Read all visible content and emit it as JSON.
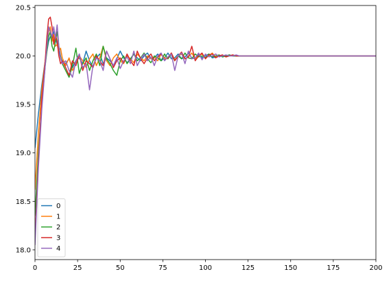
{
  "chart_data": {
    "type": "line",
    "title": "",
    "xlabel": "",
    "ylabel": "",
    "xlim": [
      0,
      200
    ],
    "ylim": [
      17.9,
      20.52
    ],
    "xticks": [
      0,
      25,
      50,
      75,
      100,
      125,
      150,
      175,
      200
    ],
    "yticks": [
      18.0,
      18.5,
      19.0,
      19.5,
      20.0,
      20.5
    ],
    "grid": false,
    "legend_position": "lower-left",
    "series": [
      {
        "name": "0",
        "color": "#1f77b4",
        "x": [
          0,
          2,
          4,
          6,
          7,
          8,
          9,
          10,
          11,
          12,
          13,
          14,
          15,
          16,
          18,
          20,
          22,
          24,
          26,
          28,
          30,
          32,
          34,
          36,
          38,
          40,
          42,
          44,
          46,
          48,
          50,
          52,
          54,
          56,
          58,
          60,
          62,
          64,
          66,
          68,
          70,
          72,
          74,
          76,
          78,
          80,
          82,
          84,
          86,
          88,
          90,
          92,
          94,
          96,
          98,
          100,
          102,
          104,
          106,
          108,
          110,
          112,
          114,
          116,
          118,
          120,
          122,
          125,
          130,
          135,
          140,
          150,
          160,
          175,
          200
        ],
        "y": [
          19.05,
          19.4,
          19.7,
          19.95,
          20.05,
          20.15,
          20.2,
          20.18,
          20.25,
          20.2,
          20.12,
          20.05,
          19.98,
          19.95,
          19.92,
          19.97,
          19.88,
          19.95,
          19.98,
          19.92,
          20.05,
          19.95,
          19.88,
          19.98,
          20.02,
          19.92,
          19.98,
          19.95,
          19.9,
          19.97,
          20.05,
          19.98,
          19.93,
          19.97,
          20.02,
          19.98,
          19.95,
          20.0,
          20.03,
          19.97,
          19.98,
          20.02,
          19.95,
          19.98,
          20.03,
          19.97,
          19.98,
          20.02,
          19.97,
          19.99,
          20.03,
          19.98,
          19.97,
          20.02,
          19.98,
          20.0,
          20.02,
          19.98,
          19.99,
          20.01,
          19.99,
          20.0,
          20.01,
          20.0,
          20.0,
          20.0,
          20.0,
          20.0,
          20.0,
          20.0,
          20.0,
          20.0,
          20.0,
          20.0,
          20.0
        ]
      },
      {
        "name": "1",
        "color": "#ff7f0e",
        "x": [
          0,
          2,
          4,
          6,
          7,
          8,
          9,
          10,
          11,
          12,
          13,
          14,
          15,
          16,
          18,
          20,
          22,
          24,
          26,
          28,
          30,
          32,
          34,
          36,
          38,
          40,
          42,
          44,
          46,
          48,
          50,
          52,
          54,
          56,
          58,
          60,
          62,
          64,
          66,
          68,
          70,
          72,
          74,
          76,
          78,
          80,
          82,
          84,
          86,
          88,
          90,
          92,
          94,
          96,
          98,
          100,
          102,
          104,
          106,
          108,
          110,
          112,
          114,
          116,
          118,
          120,
          122,
          125,
          130,
          135,
          140,
          150,
          160,
          175,
          200
        ],
        "y": [
          18.62,
          19.2,
          19.65,
          19.95,
          20.1,
          20.25,
          20.3,
          20.15,
          20.22,
          20.1,
          20.12,
          20.05,
          20.08,
          19.98,
          19.9,
          19.98,
          19.85,
          19.92,
          20.0,
          19.95,
          19.88,
          19.97,
          20.02,
          19.9,
          19.98,
          20.1,
          19.95,
          19.9,
          19.98,
          20.02,
          19.95,
          19.92,
          20.0,
          19.97,
          19.93,
          20.02,
          19.98,
          19.95,
          20.0,
          19.97,
          19.99,
          19.95,
          20.02,
          19.98,
          19.97,
          20.03,
          19.96,
          20.0,
          20.02,
          19.97,
          19.99,
          20.03,
          19.97,
          20.0,
          20.02,
          19.98,
          20.0,
          20.03,
          19.99,
          20.0,
          20.01,
          19.99,
          20.0,
          20.01,
          20.0,
          20.0,
          20.0,
          20.0,
          20.0,
          20.0,
          20.0,
          20.0,
          20.0,
          20.0,
          20.0
        ]
      },
      {
        "name": "2",
        "color": "#2ca02c",
        "x": [
          0,
          2,
          4,
          6,
          7,
          8,
          9,
          10,
          11,
          12,
          13,
          14,
          15,
          16,
          18,
          20,
          22,
          24,
          26,
          28,
          30,
          32,
          34,
          36,
          38,
          40,
          42,
          44,
          46,
          48,
          50,
          52,
          54,
          56,
          58,
          60,
          62,
          64,
          66,
          68,
          70,
          72,
          74,
          76,
          78,
          80,
          82,
          84,
          86,
          88,
          90,
          92,
          94,
          96,
          98,
          100,
          102,
          104,
          106,
          108,
          110,
          112,
          114,
          116,
          118,
          120,
          122,
          125,
          130,
          135,
          140,
          150,
          160,
          175,
          200
        ],
        "y": [
          18.35,
          19.0,
          19.5,
          19.9,
          20.05,
          20.2,
          20.25,
          20.1,
          20.05,
          20.15,
          20.25,
          20.1,
          20.0,
          19.92,
          19.85,
          19.78,
          19.9,
          20.08,
          19.82,
          19.92,
          19.98,
          19.85,
          19.95,
          20.02,
          19.9,
          20.1,
          19.97,
          19.92,
          19.85,
          19.8,
          19.95,
          20.0,
          19.92,
          19.97,
          20.02,
          19.95,
          19.98,
          20.03,
          19.97,
          19.93,
          20.0,
          19.98,
          19.95,
          20.02,
          19.97,
          20.02,
          19.95,
          20.0,
          19.97,
          20.03,
          19.98,
          19.97,
          20.02,
          19.99,
          20.0,
          19.98,
          20.02,
          19.99,
          20.0,
          20.01,
          19.99,
          20.0,
          20.01,
          20.0,
          20.0,
          20.0,
          20.0,
          20.0,
          20.0,
          20.0,
          20.0,
          20.0,
          20.0,
          20.0,
          20.0
        ]
      },
      {
        "name": "3",
        "color": "#d62728",
        "x": [
          0,
          2,
          4,
          6,
          7,
          8,
          9,
          10,
          11,
          12,
          13,
          14,
          15,
          16,
          18,
          20,
          22,
          24,
          26,
          28,
          30,
          32,
          34,
          36,
          38,
          40,
          42,
          44,
          46,
          48,
          50,
          52,
          54,
          56,
          58,
          60,
          62,
          64,
          66,
          68,
          70,
          72,
          74,
          76,
          78,
          80,
          82,
          84,
          86,
          88,
          90,
          92,
          94,
          96,
          98,
          100,
          102,
          104,
          106,
          108,
          110,
          112,
          114,
          116,
          118,
          120,
          122,
          125,
          130,
          135,
          140,
          150,
          160,
          175,
          200
        ],
        "y": [
          18.12,
          18.9,
          19.55,
          19.95,
          20.2,
          20.38,
          20.4,
          20.3,
          20.12,
          20.22,
          20.15,
          20.0,
          19.92,
          19.95,
          19.88,
          19.8,
          19.95,
          19.9,
          20.02,
          19.85,
          19.95,
          19.92,
          19.88,
          20.0,
          19.95,
          19.9,
          20.05,
          19.97,
          19.88,
          19.95,
          19.98,
          19.93,
          20.02,
          19.95,
          19.9,
          20.05,
          19.97,
          19.92,
          19.98,
          20.02,
          19.95,
          19.99,
          20.02,
          19.96,
          19.98,
          20.03,
          19.95,
          20.0,
          20.04,
          19.97,
          19.99,
          20.1,
          19.95,
          20.0,
          20.03,
          19.97,
          20.01,
          20.02,
          19.98,
          20.0,
          20.01,
          19.99,
          20.0,
          20.01,
          20.0,
          20.0,
          20.0,
          20.0,
          20.0,
          20.0,
          20.0,
          20.0,
          20.0,
          20.0,
          20.0
        ]
      },
      {
        "name": "4",
        "color": "#9467bd",
        "x": [
          0,
          2,
          4,
          6,
          7,
          8,
          9,
          10,
          11,
          12,
          13,
          14,
          15,
          16,
          18,
          20,
          22,
          24,
          26,
          28,
          30,
          32,
          34,
          36,
          38,
          40,
          42,
          44,
          46,
          48,
          50,
          52,
          54,
          56,
          58,
          60,
          62,
          64,
          66,
          68,
          70,
          72,
          74,
          76,
          78,
          80,
          82,
          84,
          86,
          88,
          90,
          92,
          94,
          96,
          98,
          100,
          102,
          104,
          106,
          108,
          110,
          112,
          114,
          116,
          118,
          120,
          122,
          125,
          130,
          135,
          140,
          150,
          160,
          175,
          200
        ],
        "y": [
          18.05,
          18.85,
          19.45,
          19.9,
          20.1,
          20.3,
          20.25,
          20.2,
          20.3,
          20.18,
          20.32,
          20.1,
          19.98,
          19.92,
          19.95,
          19.85,
          19.78,
          19.95,
          20.02,
          19.88,
          19.92,
          19.65,
          19.9,
          19.98,
          19.95,
          19.85,
          20.05,
          19.97,
          19.9,
          19.98,
          19.87,
          19.95,
          19.99,
          19.92,
          20.05,
          19.9,
          19.97,
          20.02,
          19.95,
          19.99,
          19.9,
          20.0,
          20.03,
          19.95,
          19.99,
          20.02,
          19.85,
          20.0,
          20.03,
          19.92,
          20.05,
          19.97,
          19.98,
          20.03,
          19.96,
          20.02,
          19.99,
          20.0,
          20.02,
          19.99,
          20.0,
          20.01,
          20.0,
          20.0,
          20.01,
          20.0,
          20.0,
          20.0,
          20.0,
          20.0,
          20.0,
          20.0,
          20.0,
          20.0,
          20.0
        ]
      }
    ]
  }
}
